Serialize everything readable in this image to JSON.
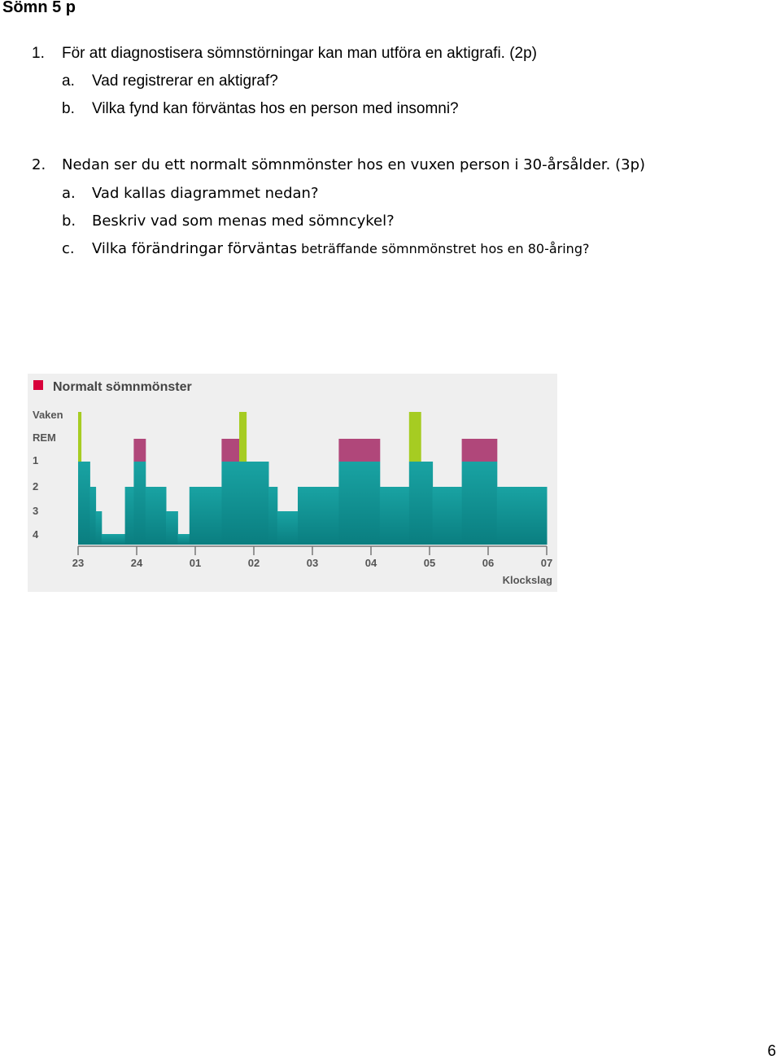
{
  "heading": "Sömn 5 p",
  "q1": {
    "num": "1.",
    "text": "För att diagnostisera sömnstörningar kan man utföra en aktigrafi. (2p)",
    "a_label": "a.",
    "a_text": "Vad registrerar en aktigraf?",
    "b_label": "b.",
    "b_text": "Vilka fynd kan förväntas hos en person med insomni?"
  },
  "q2": {
    "num": "2.",
    "text": "Nedan ser du ett normalt sömnmönster hos en vuxen person i 30-årsålder. (3p)",
    "a_label": "a.",
    "a_text": "Vad kallas diagrammet nedan?",
    "b_label": "b.",
    "b_text": "Beskriv vad som menas med sömncykel?",
    "c_label": "c.",
    "c_text_a": "Vilka förändringar förväntas",
    "c_text_b": " beträffande sömnmönstret hos en 80-åring?"
  },
  "chart_data": {
    "type": "area",
    "title": "Normalt sömnmönster",
    "xlabel": "Klockslag",
    "x_ticks": [
      "23",
      "24",
      "01",
      "02",
      "03",
      "04",
      "05",
      "06",
      "07"
    ],
    "y_categories": [
      "Vaken",
      "REM",
      "1",
      "2",
      "3",
      "4"
    ],
    "stage_level": {
      "Vaken": 5,
      "REM": 4,
      "1": 3,
      "2": 2,
      "3": 1,
      "4": 0
    },
    "segments": [
      {
        "start": 23.0,
        "end": 23.05,
        "stage": "Vaken"
      },
      {
        "start": 23.05,
        "end": 23.2,
        "stage": "1"
      },
      {
        "start": 23.2,
        "end": 23.3,
        "stage": "2"
      },
      {
        "start": 23.3,
        "end": 23.4,
        "stage": "3"
      },
      {
        "start": 23.4,
        "end": 23.8,
        "stage": "4"
      },
      {
        "start": 23.8,
        "end": 23.95,
        "stage": "2"
      },
      {
        "start": 23.95,
        "end": 24.15,
        "stage": "REM"
      },
      {
        "start": 24.15,
        "end": 24.5,
        "stage": "2"
      },
      {
        "start": 24.5,
        "end": 24.7,
        "stage": "3"
      },
      {
        "start": 24.7,
        "end": 24.9,
        "stage": "4"
      },
      {
        "start": 24.9,
        "end": 25.45,
        "stage": "2"
      },
      {
        "start": 25.45,
        "end": 25.75,
        "stage": "REM"
      },
      {
        "start": 25.75,
        "end": 25.87,
        "stage": "Vaken"
      },
      {
        "start": 25.87,
        "end": 26.25,
        "stage": "1"
      },
      {
        "start": 26.25,
        "end": 26.4,
        "stage": "2"
      },
      {
        "start": 26.4,
        "end": 26.75,
        "stage": "3"
      },
      {
        "start": 26.75,
        "end": 27.45,
        "stage": "2"
      },
      {
        "start": 27.45,
        "end": 28.15,
        "stage": "REM"
      },
      {
        "start": 28.15,
        "end": 28.65,
        "stage": "2"
      },
      {
        "start": 28.65,
        "end": 28.85,
        "stage": "Vaken"
      },
      {
        "start": 28.85,
        "end": 29.05,
        "stage": "1"
      },
      {
        "start": 29.05,
        "end": 29.55,
        "stage": "2"
      },
      {
        "start": 29.55,
        "end": 30.15,
        "stage": "REM"
      },
      {
        "start": 30.15,
        "end": 31.0,
        "stage": "2"
      }
    ],
    "colors": {
      "background": "#efefef",
      "title_marker": "#d8003a",
      "sleep": "#19a3a3",
      "sleep_dark": "#0a7e80",
      "rem": "#b0477a",
      "awake": "#a6cc22",
      "text": "#555555"
    }
  },
  "page_number": "6"
}
